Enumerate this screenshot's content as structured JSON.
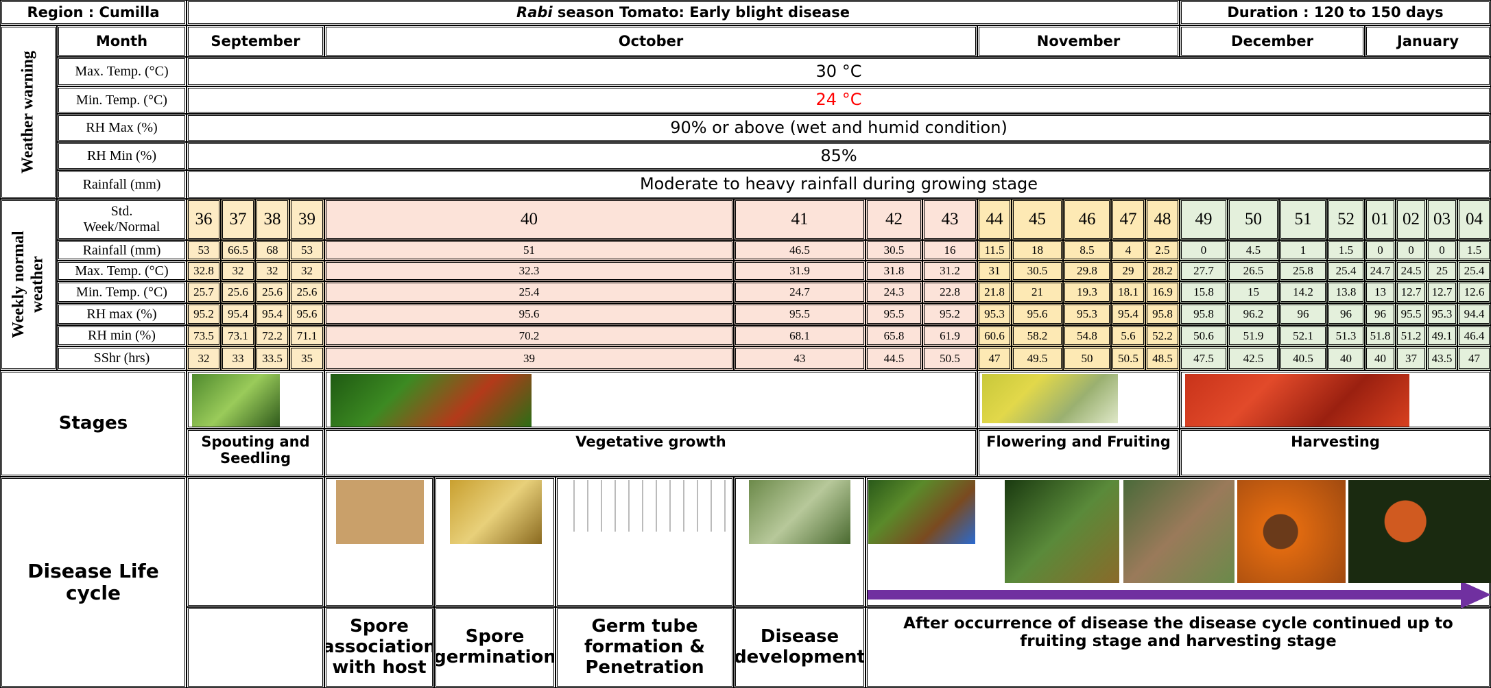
{
  "header": {
    "region": "Region : Cumilla",
    "title_italic": "Rabi",
    "title": " season Tomato: Early blight disease",
    "duration": "Duration : 120 to 150 days"
  },
  "weather_warning": {
    "label": "Weather warning",
    "month_label": "Month",
    "months": [
      "September",
      "October",
      "November",
      "December",
      "January"
    ],
    "rows": [
      {
        "label": "Max. Temp. (°C)",
        "value": "30 °C"
      },
      {
        "label": "Min. Temp. (°C)",
        "value": "24 °C"
      },
      {
        "label": "RH Max (%)",
        "value": "90% or above (wet and humid condition)"
      },
      {
        "label": "RH Min (%)",
        "value": "85%"
      },
      {
        "label": "Rainfall (mm)",
        "value": "Moderate to heavy rainfall during growing stage"
      }
    ]
  },
  "weekly": {
    "label": "Weekly normal weather",
    "week_label": "Std.\nWeek/Normal",
    "weeks": [
      "36",
      "37",
      "38",
      "39",
      "40",
      "41",
      "42",
      "43",
      "44",
      "45",
      "46",
      "47",
      "48",
      "49",
      "50",
      "51",
      "52",
      "01",
      "02",
      "03",
      "04"
    ],
    "rows": [
      {
        "label": "Rainfall (mm)",
        "values": [
          53,
          66.5,
          68,
          53,
          51,
          46.5,
          30.5,
          16,
          11.5,
          18,
          8.5,
          4,
          2.5,
          0,
          4.5,
          1,
          1.5,
          0,
          0,
          0,
          1.5
        ]
      },
      {
        "label": "Max. Temp. (°C)",
        "values": [
          32.8,
          32,
          32,
          32,
          32.3,
          31.9,
          31.8,
          31.2,
          31,
          30.5,
          29.8,
          29,
          28.2,
          27.7,
          26.5,
          25.8,
          25.4,
          24.7,
          24.5,
          25,
          25.4
        ]
      },
      {
        "label": "Min. Temp. (°C)",
        "values": [
          25.7,
          25.6,
          25.6,
          25.6,
          25.4,
          24.7,
          24.3,
          22.8,
          21.8,
          21,
          19.3,
          18.1,
          16.9,
          15.8,
          15,
          14.2,
          13.8,
          13,
          12.7,
          12.7,
          12.6
        ]
      },
      {
        "label": "RH max (%)",
        "values": [
          95.2,
          95.4,
          95.4,
          95.6,
          95.6,
          95.5,
          95.5,
          95.2,
          95.3,
          95.6,
          95.3,
          95.4,
          95.8,
          95.8,
          96.2,
          96,
          96,
          96,
          95.5,
          95.3,
          94.4
        ]
      },
      {
        "label": "RH min (%)",
        "values": [
          73.5,
          73.1,
          72.2,
          71.1,
          70.2,
          68.1,
          65.8,
          61.9,
          60.6,
          58.2,
          54.8,
          5.6,
          52.2,
          50.6,
          51.9,
          52.1,
          51.3,
          51.8,
          51.2,
          49.1,
          46.4
        ]
      },
      {
        "label": "SShr (hrs)",
        "values": [
          32,
          33,
          33.5,
          35,
          39,
          43,
          44.5,
          50.5,
          47,
          49.5,
          50,
          50.5,
          48.5,
          47.5,
          42.5,
          40.5,
          40,
          40,
          37,
          43.5,
          47
        ]
      }
    ]
  },
  "stages": {
    "label": "Stages",
    "items": [
      "Spouting and Seedling",
      "Vegetative growth",
      "Flowering and Fruiting",
      "Harvesting"
    ]
  },
  "disease": {
    "label": "Disease Life cycle",
    "steps": [
      "Spore association with host",
      "Spore germination",
      "Germ tube formation & Penetration",
      "Disease development",
      "After occurrence of disease the disease cycle continued up to fruiting stage and harvesting stage"
    ]
  }
}
